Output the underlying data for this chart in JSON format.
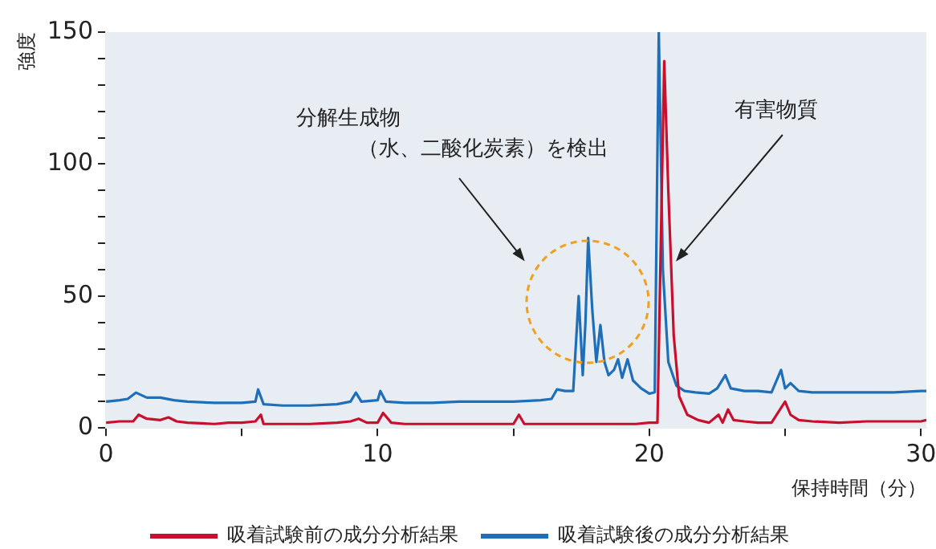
{
  "chart_data": {
    "type": "line",
    "xlabel": "保持時間（分）",
    "ylabel": "強度",
    "xlim": [
      0,
      30.2
    ],
    "ylim": [
      0,
      150
    ],
    "xticks": [
      0,
      {
        "value": 5,
        "label": null
      },
      10,
      {
        "value": 15,
        "label": null
      },
      20,
      {
        "value": 25,
        "label": null
      },
      30
    ],
    "yticks": [
      0,
      {
        "value": 10,
        "label": null
      },
      {
        "value": 20,
        "label": null
      },
      {
        "value": 30,
        "label": null
      },
      {
        "value": 40,
        "label": null
      },
      50,
      {
        "value": 60,
        "label": null
      },
      {
        "value": 70,
        "label": null
      },
      {
        "value": 80,
        "label": null
      },
      {
        "value": 90,
        "label": null
      },
      100,
      {
        "value": 110,
        "label": null
      },
      {
        "value": 120,
        "label": null
      },
      {
        "value": 130,
        "label": null
      },
      {
        "value": 140,
        "label": null
      },
      150
    ],
    "grid": false,
    "legend": "bottom",
    "marker": "none",
    "line_style": "solid",
    "annotations": [
      "分解生成物",
      "（水、二酸化炭素）を検出",
      "有害物質"
    ],
    "series": [
      {
        "name": "吸着試験前の成分分析結果",
        "color": "#c8102e",
        "x": [
          0,
          0.5,
          1.0,
          1.2,
          1.5,
          2.0,
          2.3,
          2.6,
          3.0,
          4.0,
          4.5,
          5.0,
          5.5,
          5.7,
          5.8,
          6.5,
          7.5,
          8.5,
          9.0,
          9.3,
          9.6,
          10.0,
          10.2,
          10.5,
          11,
          12,
          13,
          14,
          15,
          15.2,
          15.4,
          16,
          17,
          18,
          19,
          19.5,
          20,
          20.3,
          20.55,
          20.7,
          20.9,
          21.1,
          21.4,
          21.8,
          22.2,
          22.55,
          22.7,
          22.9,
          23.1,
          23.5,
          24,
          24.5,
          25.0,
          25.2,
          25.5,
          26,
          27,
          28,
          29,
          30,
          30.2
        ],
        "values": [
          2,
          2.5,
          2.5,
          5,
          3.5,
          3,
          4,
          2.5,
          2,
          1.5,
          2,
          2,
          2.5,
          5,
          1.5,
          1.5,
          1.5,
          2,
          2.5,
          3.5,
          2,
          2,
          5.7,
          2,
          1.5,
          1.5,
          1.5,
          1.5,
          1.5,
          5,
          1.5,
          1.5,
          1.5,
          1.5,
          1.5,
          1.5,
          2,
          2,
          139,
          90,
          35,
          12,
          5,
          3,
          2,
          5,
          2,
          7,
          3,
          2.5,
          2,
          2,
          10,
          5,
          3,
          2.5,
          2,
          2.5,
          2.5,
          2.5,
          3
        ]
      },
      {
        "name": "吸着試験後の成分分析結果",
        "color": "#1f6fb8",
        "x": [
          0,
          0.5,
          0.8,
          1.1,
          1.5,
          2.0,
          2.5,
          3.0,
          4.0,
          5.0,
          5.5,
          5.6,
          5.8,
          6.5,
          7.5,
          8.5,
          9.0,
          9.2,
          9.4,
          10.0,
          10.1,
          10.3,
          11,
          12,
          13,
          14,
          15,
          16,
          16.4,
          16.6,
          16.9,
          17.2,
          17.4,
          17.55,
          17.65,
          17.75,
          17.9,
          18.05,
          18.2,
          18.35,
          18.5,
          18.7,
          18.85,
          19.0,
          19.2,
          19.4,
          19.7,
          20.0,
          20.2,
          20.35,
          20.5,
          20.7,
          21.0,
          21.3,
          21.7,
          22.2,
          22.5,
          22.8,
          23.0,
          23.5,
          24,
          24.5,
          24.85,
          25.0,
          25.2,
          25.5,
          26,
          27,
          28,
          29,
          30,
          30.2
        ],
        "values": [
          10,
          10.5,
          11,
          13.4,
          11.5,
          11.5,
          10.5,
          10,
          9.5,
          9.5,
          10,
          14.6,
          9,
          8.5,
          8.5,
          9,
          10,
          13.4,
          10,
          10.5,
          14,
          10,
          9.5,
          9.5,
          10,
          10,
          10,
          10.5,
          11,
          14.6,
          14,
          14,
          50,
          20,
          40,
          72,
          45,
          25,
          39,
          25,
          20,
          22,
          26,
          19,
          26,
          18,
          15,
          13,
          13.5,
          150,
          60,
          25,
          16,
          14,
          13.5,
          13,
          15,
          20,
          15,
          14,
          14,
          13.5,
          22,
          15,
          17,
          14,
          13.5,
          13.5,
          13.5,
          13.5,
          14,
          14
        ]
      }
    ]
  }
}
